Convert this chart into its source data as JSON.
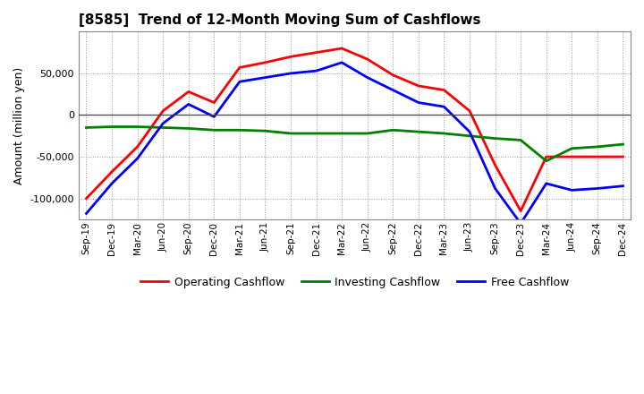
{
  "title": "[8585]  Trend of 12-Month Moving Sum of Cashflows",
  "ylabel": "Amount (million yen)",
  "x_labels": [
    "Sep-19",
    "Dec-19",
    "Mar-20",
    "Jun-20",
    "Sep-20",
    "Dec-20",
    "Mar-21",
    "Jun-21",
    "Sep-21",
    "Dec-21",
    "Mar-22",
    "Jun-22",
    "Sep-22",
    "Dec-22",
    "Mar-23",
    "Jun-23",
    "Sep-23",
    "Dec-23",
    "Mar-24",
    "Jun-24",
    "Sep-24",
    "Dec-24"
  ],
  "operating": [
    -100000,
    -68000,
    -38000,
    5000,
    28000,
    15000,
    57000,
    63000,
    70000,
    75000,
    80000,
    67000,
    48000,
    35000,
    30000,
    5000,
    -60000,
    -115000,
    -50000,
    -50000,
    -50000,
    -50000
  ],
  "investing": [
    -15000,
    -14000,
    -14000,
    -15000,
    -16000,
    -18000,
    -18000,
    -19000,
    -22000,
    -22000,
    -22000,
    -22000,
    -18000,
    -20000,
    -22000,
    -25000,
    -28000,
    -30000,
    -55000,
    -40000,
    -38000,
    -35000
  ],
  "free": [
    -118000,
    -82000,
    -52000,
    -10000,
    13000,
    -2000,
    40000,
    45000,
    50000,
    53000,
    63000,
    45000,
    30000,
    15000,
    10000,
    -20000,
    -88000,
    -130000,
    -82000,
    -90000,
    -88000,
    -85000
  ],
  "operating_color": "#ff0000",
  "investing_color": "#008000",
  "free_color": "#0000ff",
  "line_width": 2.0,
  "ylim": [
    -125000,
    100000
  ],
  "yticks": [
    -100000,
    -50000,
    0,
    50000
  ],
  "background_color": "#ffffff",
  "grid_color": "#999999",
  "legend_labels": [
    "Operating Cashflow",
    "Investing Cashflow",
    "Free Cashflow"
  ]
}
